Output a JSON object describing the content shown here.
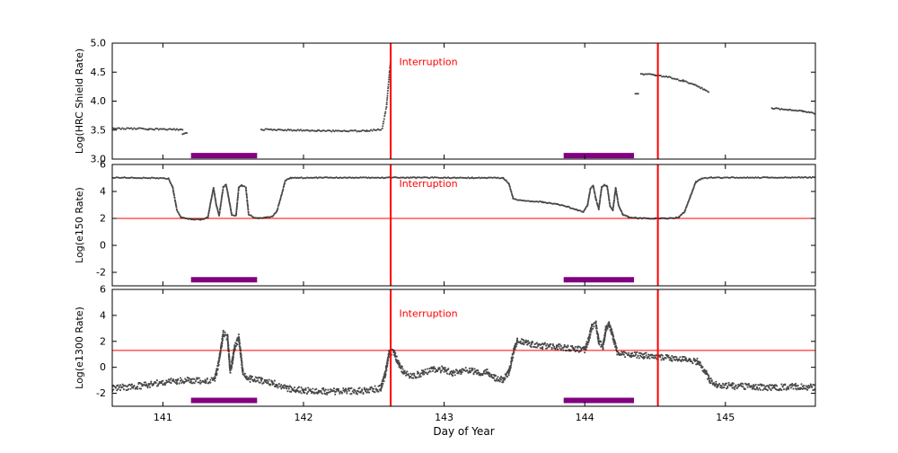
{
  "figure": {
    "xlabel": "Day of Year",
    "xlim": [
      140.64,
      145.64
    ],
    "x_ticks": [
      141,
      142,
      143,
      144,
      145
    ],
    "x_tick_labels": [
      "141",
      "142",
      "143",
      "144",
      "145"
    ],
    "vlines": [
      142.62,
      144.52
    ],
    "annotation_text": "Interruption",
    "colors": {
      "points": "#1a1a1a",
      "event_line": "#ff0000",
      "threshold_line": "#ff0000",
      "annotation": "#ff0000",
      "bar": "#800080",
      "axis": "#000000",
      "background": "#ffffff"
    }
  },
  "chart_data": [
    {
      "type": "scatter",
      "name": "hrc-shield",
      "ylabel": "Log(HRC Shield Rate)",
      "ylim": [
        3.0,
        5.0
      ],
      "ytick_values": [
        3.0,
        3.5,
        4.0,
        4.5,
        5.0
      ],
      "ytick_labels": [
        "3.0",
        "3.5",
        "4.0",
        "4.5",
        "5.0"
      ],
      "hline": null,
      "annotation_xy": [
        142.68,
        4.62
      ],
      "bars": [
        [
          141.2,
          141.67
        ],
        [
          143.85,
          144.35
        ]
      ],
      "bar_y": 3.06,
      "segments": [
        {
          "noise": 0.013,
          "points": [
            [
              140.64,
              3.53
            ],
            [
              140.9,
              3.52
            ],
            [
              141.1,
              3.51
            ],
            [
              141.14,
              3.5
            ]
          ]
        },
        {
          "noise": 0.01,
          "points": [
            [
              141.14,
              3.43
            ],
            [
              141.17,
              3.45
            ]
          ]
        },
        {
          "noise": 0.012,
          "points": [
            [
              141.7,
              3.51
            ],
            [
              141.9,
              3.5
            ],
            [
              142.1,
              3.49
            ],
            [
              142.3,
              3.48
            ],
            [
              142.45,
              3.49
            ],
            [
              142.55,
              3.51
            ]
          ]
        },
        {
          "noise": 0.008,
          "step": 2.6,
          "points": [
            [
              142.56,
              3.53
            ],
            [
              142.59,
              3.9
            ],
            [
              142.61,
              4.45
            ],
            [
              142.62,
              4.72
            ]
          ]
        },
        {
          "noise": 0.01,
          "points": [
            [
              144.36,
              4.13
            ],
            [
              144.38,
              4.13
            ]
          ]
        },
        {
          "noise": 0.012,
          "points": [
            [
              144.4,
              4.47
            ],
            [
              144.5,
              4.45
            ],
            [
              144.6,
              4.41
            ],
            [
              144.7,
              4.35
            ],
            [
              144.78,
              4.28
            ],
            [
              144.85,
              4.2
            ],
            [
              144.88,
              4.16
            ]
          ]
        },
        {
          "noise": 0.012,
          "points": [
            [
              145.33,
              3.88
            ],
            [
              145.45,
              3.85
            ],
            [
              145.55,
              3.83
            ],
            [
              145.64,
              3.78
            ]
          ]
        }
      ]
    },
    {
      "type": "scatter",
      "name": "e150",
      "ylabel": "Log(e150  Rate)",
      "ylim": [
        -3.0,
        6.0
      ],
      "ytick_values": [
        -2,
        0,
        2,
        4,
        6
      ],
      "ytick_labels": [
        "-2",
        "0",
        "2",
        "4",
        "6"
      ],
      "hline": 2.0,
      "annotation_xy": [
        142.68,
        4.35
      ],
      "bars": [
        [
          141.2,
          141.67
        ],
        [
          143.85,
          144.35
        ]
      ],
      "bar_y": -2.55,
      "segments": [
        {
          "noise": 0.035,
          "step": 1.5,
          "points": [
            [
              140.64,
              5.03
            ],
            [
              140.95,
              5.0
            ],
            [
              141.04,
              4.95
            ],
            [
              141.07,
              4.3
            ],
            [
              141.1,
              2.6
            ],
            [
              141.13,
              2.05
            ],
            [
              141.2,
              1.95
            ],
            [
              141.27,
              1.92
            ],
            [
              141.32,
              2.05
            ],
            [
              141.34,
              3.2
            ],
            [
              141.36,
              4.25
            ],
            [
              141.38,
              3.0
            ],
            [
              141.4,
              2.2
            ],
            [
              141.43,
              4.35
            ],
            [
              141.45,
              4.5
            ],
            [
              141.47,
              3.4
            ],
            [
              141.49,
              2.25
            ],
            [
              141.52,
              2.2
            ],
            [
              141.54,
              4.3
            ],
            [
              141.56,
              4.45
            ],
            [
              141.59,
              4.3
            ],
            [
              141.61,
              2.3
            ],
            [
              141.64,
              2.1
            ],
            [
              141.68,
              2.0
            ],
            [
              141.73,
              2.05
            ],
            [
              141.78,
              2.15
            ],
            [
              141.81,
              2.5
            ],
            [
              141.84,
              3.6
            ],
            [
              141.87,
              4.8
            ],
            [
              141.91,
              5.0
            ],
            [
              142.3,
              5.03
            ],
            [
              142.8,
              5.02
            ],
            [
              143.2,
              5.01
            ],
            [
              143.42,
              5.0
            ],
            [
              143.46,
              4.6
            ],
            [
              143.49,
              3.5
            ],
            [
              143.52,
              3.35
            ],
            [
              143.6,
              3.3
            ],
            [
              143.7,
              3.22
            ],
            [
              143.8,
              3.05
            ],
            [
              143.88,
              2.85
            ],
            [
              143.95,
              2.6
            ],
            [
              143.99,
              2.5
            ],
            [
              144.02,
              3.0
            ],
            [
              144.04,
              4.2
            ],
            [
              144.06,
              4.45
            ],
            [
              144.08,
              3.4
            ],
            [
              144.1,
              2.7
            ],
            [
              144.12,
              4.3
            ],
            [
              144.14,
              4.5
            ],
            [
              144.16,
              4.35
            ],
            [
              144.18,
              2.9
            ],
            [
              144.2,
              2.6
            ],
            [
              144.22,
              4.25
            ],
            [
              144.24,
              3.0
            ],
            [
              144.27,
              2.3
            ],
            [
              144.31,
              2.1
            ],
            [
              144.38,
              2.02
            ],
            [
              144.5,
              2.0
            ],
            [
              144.62,
              2.0
            ],
            [
              144.67,
              2.1
            ],
            [
              144.71,
              2.5
            ],
            [
              144.75,
              3.6
            ],
            [
              144.79,
              4.7
            ],
            [
              144.83,
              4.97
            ],
            [
              144.9,
              5.02
            ],
            [
              145.3,
              5.03
            ],
            [
              145.64,
              5.04
            ]
          ]
        }
      ]
    },
    {
      "type": "scatter",
      "name": "e1300",
      "ylabel": "Log(e1300 Rate)",
      "ylim": [
        -3.0,
        6.0
      ],
      "ytick_values": [
        -2,
        0,
        2,
        4,
        6
      ],
      "ytick_labels": [
        "-2",
        "0",
        "2",
        "4",
        "6"
      ],
      "hline": 1.3,
      "annotation_xy": [
        142.68,
        3.9
      ],
      "bars": [
        [
          141.2,
          141.67
        ],
        [
          143.85,
          144.35
        ]
      ],
      "bar_y": -2.55,
      "segments": [
        {
          "noise": 0.24,
          "step": 1.3,
          "passes": 2,
          "points": [
            [
              140.64,
              -1.6
            ],
            [
              140.78,
              -1.5
            ],
            [
              140.9,
              -1.35
            ],
            [
              141.0,
              -1.15
            ],
            [
              141.1,
              -1.05
            ],
            [
              141.2,
              -1.0
            ],
            [
              141.3,
              -1.05
            ],
            [
              141.37,
              -0.95
            ],
            [
              141.4,
              0.5
            ],
            [
              141.43,
              2.6
            ],
            [
              141.46,
              2.3
            ],
            [
              141.48,
              -0.4
            ],
            [
              141.51,
              1.5
            ],
            [
              141.54,
              2.3
            ],
            [
              141.57,
              -0.5
            ],
            [
              141.62,
              -0.9
            ],
            [
              141.7,
              -1.0
            ],
            [
              141.78,
              -1.2
            ],
            [
              141.88,
              -1.6
            ],
            [
              142.0,
              -1.8
            ],
            [
              142.15,
              -1.85
            ],
            [
              142.3,
              -1.85
            ],
            [
              142.45,
              -1.8
            ],
            [
              142.55,
              -1.6
            ],
            [
              142.58,
              -0.6
            ],
            [
              142.61,
              1.1
            ],
            [
              142.64,
              1.2
            ],
            [
              142.68,
              0.2
            ],
            [
              142.72,
              -0.5
            ],
            [
              142.78,
              -0.65
            ],
            [
              142.85,
              -0.45
            ],
            [
              142.92,
              -0.2
            ],
            [
              143.0,
              -0.15
            ],
            [
              143.06,
              -0.45
            ],
            [
              143.12,
              -0.3
            ],
            [
              143.18,
              -0.2
            ],
            [
              143.24,
              -0.45
            ],
            [
              143.3,
              -0.35
            ],
            [
              143.36,
              -0.8
            ],
            [
              143.42,
              -1.0
            ],
            [
              143.46,
              -0.4
            ],
            [
              143.49,
              1.0
            ],
            [
              143.52,
              2.1
            ],
            [
              143.56,
              2.0
            ],
            [
              143.62,
              1.8
            ],
            [
              143.7,
              1.65
            ],
            [
              143.8,
              1.6
            ],
            [
              143.88,
              1.5
            ],
            [
              143.95,
              1.4
            ],
            [
              144.0,
              1.35
            ],
            [
              144.03,
              2.2
            ],
            [
              144.05,
              3.1
            ],
            [
              144.08,
              3.3
            ],
            [
              144.1,
              2.0
            ],
            [
              144.13,
              1.6
            ],
            [
              144.15,
              3.0
            ],
            [
              144.17,
              3.35
            ],
            [
              144.2,
              2.4
            ],
            [
              144.23,
              1.2
            ],
            [
              144.27,
              1.05
            ],
            [
              144.33,
              0.95
            ],
            [
              144.42,
              0.9
            ],
            [
              144.52,
              0.8
            ],
            [
              144.62,
              0.7
            ],
            [
              144.72,
              0.6
            ],
            [
              144.8,
              0.45
            ],
            [
              144.85,
              -0.2
            ],
            [
              144.89,
              -1.0
            ],
            [
              144.94,
              -1.35
            ],
            [
              145.05,
              -1.45
            ],
            [
              145.2,
              -1.5
            ],
            [
              145.35,
              -1.55
            ],
            [
              145.5,
              -1.5
            ],
            [
              145.64,
              -1.55
            ]
          ]
        }
      ]
    }
  ]
}
